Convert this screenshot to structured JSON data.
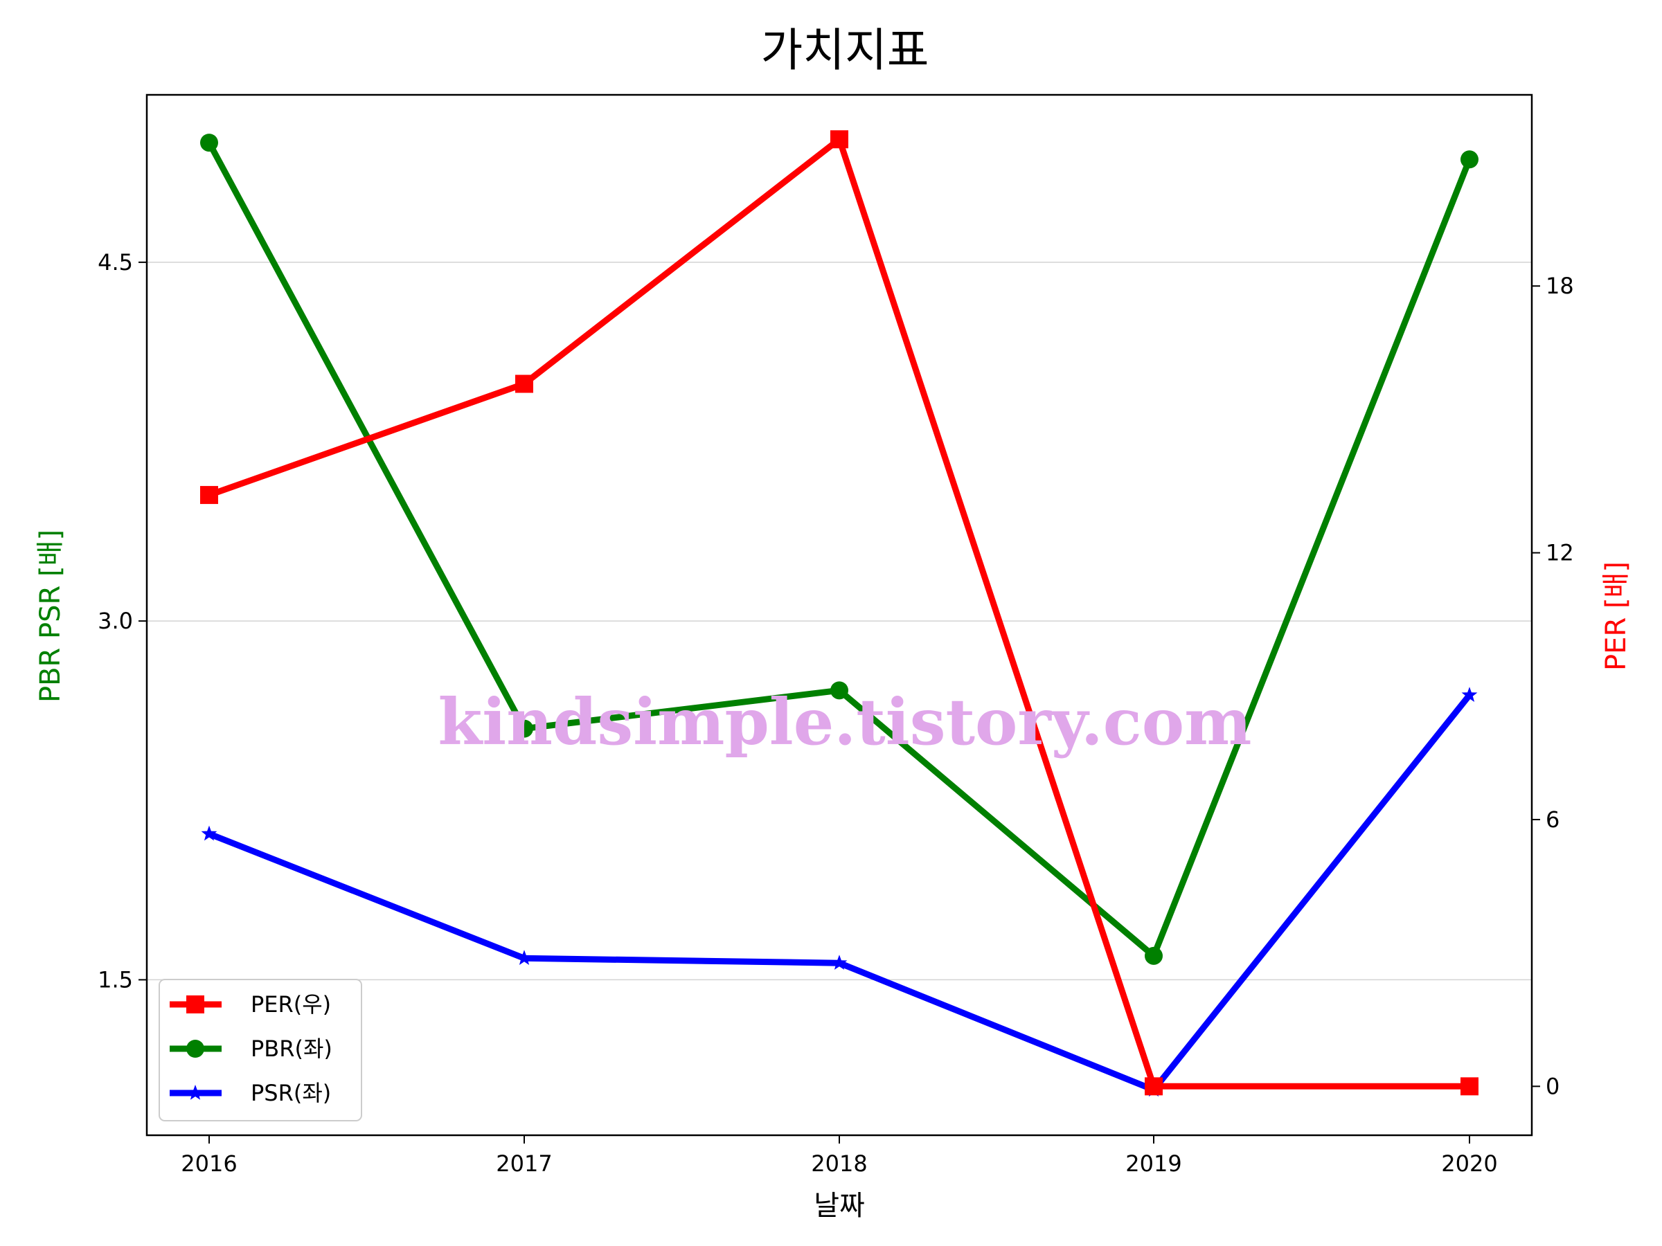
{
  "chart_data": {
    "type": "line",
    "title": "가치지표",
    "xlabel": "날짜",
    "ylabel_left": "PBR PSR [배]",
    "ylabel_right": "PER [배]",
    "ylabel_left_color": "#008000",
    "ylabel_right_color": "#ff0000",
    "x": [
      "2016",
      "2017",
      "2018",
      "2019",
      "2020"
    ],
    "ylim_left": [
      0.85,
      5.2
    ],
    "ylim_right": [
      -1.1,
      22.3
    ],
    "yticks_left": [
      1.5,
      3.0,
      4.5
    ],
    "yticks_left_labels": [
      "1.5",
      "3.0",
      "4.5"
    ],
    "yticks_right": [
      0,
      6,
      12,
      18
    ],
    "yticks_right_labels": [
      "0",
      "6",
      "12",
      "18"
    ],
    "grid": "horizontal (left axis)",
    "legend_position": "lower-left",
    "series": [
      {
        "name": "PER(우)",
        "axis": "right",
        "color": "#ff0000",
        "marker": "square",
        "values": [
          13.3,
          15.8,
          21.3,
          0.0,
          0.0
        ]
      },
      {
        "name": "PBR(좌)",
        "axis": "left",
        "color": "#008000",
        "marker": "circle",
        "values": [
          5.0,
          2.55,
          2.71,
          1.6,
          4.93
        ]
      },
      {
        "name": "PSR(좌)",
        "axis": "left",
        "color": "#0000ff",
        "marker": "star",
        "values": [
          2.11,
          1.59,
          1.57,
          1.04,
          2.69
        ]
      }
    ],
    "watermark": "kindsimple.tistory.com"
  }
}
